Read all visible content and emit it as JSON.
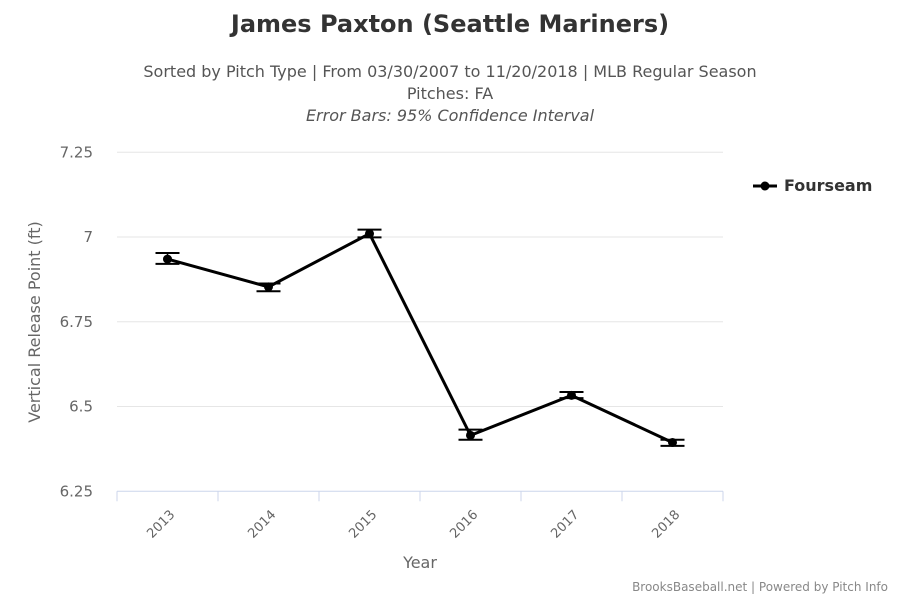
{
  "chart_data": {
    "type": "line",
    "title": "James Paxton (Seattle Mariners)",
    "subtitle": "Sorted by Pitch Type | From 03/30/2007 to 11/20/2018 | MLB Regular Season",
    "subtitle2": "Pitches: FA",
    "subtitle3": "Error Bars: 95% Confidence Interval",
    "xlabel": "Year",
    "ylabel": "Vertical Release Point (ft)",
    "categories": [
      "2013",
      "2014",
      "2015",
      "2016",
      "2017",
      "2018"
    ],
    "yticks": [
      "6.25",
      "6.5",
      "6.75",
      "7",
      "7.25"
    ],
    "ylim": [
      6.25,
      7.25
    ],
    "grid": true,
    "legend_position": "right",
    "series": [
      {
        "name": "Fourseam",
        "color": "#000000",
        "values": [
          6.935,
          6.853,
          7.01,
          6.415,
          6.533,
          6.394
        ],
        "error_low": [
          6.921,
          6.84,
          6.999,
          6.402,
          6.525,
          6.384
        ],
        "error_high": [
          6.953,
          6.863,
          7.022,
          6.432,
          6.543,
          6.402
        ]
      }
    ],
    "credit": "BrooksBaseball.net | Powered by Pitch Info"
  }
}
